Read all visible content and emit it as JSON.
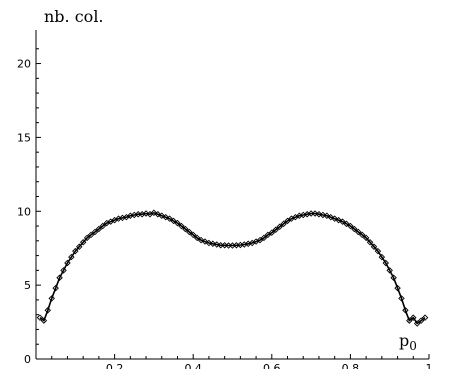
{
  "chart_data": {
    "type": "line",
    "title": "",
    "xlabel": "p0",
    "xlabel_base": "p",
    "xlabel_sub": "0",
    "ylabel": "nb. col.",
    "xlim": [
      0,
      1
    ],
    "ylim": [
      0,
      22
    ],
    "x_ticks": [
      0.2,
      0.4,
      0.6,
      0.8,
      1
    ],
    "x_tick_labels": [
      "0.2",
      "0.4",
      "0.6",
      "0.8",
      "1"
    ],
    "y_ticks": [
      0,
      5,
      10,
      15,
      20
    ],
    "y_tick_labels": [
      "0",
      "5",
      "10",
      "15",
      "20"
    ],
    "grid": false,
    "legend": "none",
    "series": [
      {
        "style": "line-with-diamond-markers",
        "x": [
          0.01,
          0.02,
          0.03,
          0.04,
          0.05,
          0.06,
          0.07,
          0.08,
          0.09,
          0.1,
          0.11,
          0.12,
          0.13,
          0.14,
          0.15,
          0.16,
          0.17,
          0.18,
          0.19,
          0.2,
          0.21,
          0.22,
          0.23,
          0.24,
          0.25,
          0.26,
          0.27,
          0.28,
          0.29,
          0.3,
          0.31,
          0.32,
          0.33,
          0.34,
          0.35,
          0.36,
          0.37,
          0.38,
          0.39,
          0.4,
          0.41,
          0.42,
          0.43,
          0.44,
          0.45,
          0.46,
          0.47,
          0.48,
          0.49,
          0.5,
          0.51,
          0.52,
          0.53,
          0.54,
          0.55,
          0.56,
          0.57,
          0.58,
          0.59,
          0.6,
          0.61,
          0.62,
          0.63,
          0.64,
          0.65,
          0.66,
          0.67,
          0.68,
          0.69,
          0.7,
          0.71,
          0.72,
          0.73,
          0.74,
          0.75,
          0.76,
          0.77,
          0.78,
          0.79,
          0.8,
          0.81,
          0.82,
          0.83,
          0.84,
          0.85,
          0.86,
          0.87,
          0.88,
          0.89,
          0.9,
          0.91,
          0.92,
          0.93,
          0.94,
          0.95,
          0.96,
          0.97,
          0.98,
          0.99
        ],
        "y": [
          2.8,
          2.6,
          3.3,
          4.1,
          4.8,
          5.5,
          6.0,
          6.5,
          6.9,
          7.3,
          7.6,
          7.9,
          8.2,
          8.4,
          8.6,
          8.8,
          9.0,
          9.2,
          9.3,
          9.4,
          9.5,
          9.55,
          9.6,
          9.7,
          9.75,
          9.8,
          9.8,
          9.85,
          9.8,
          9.9,
          9.8,
          9.7,
          9.6,
          9.5,
          9.35,
          9.2,
          9.0,
          8.8,
          8.6,
          8.4,
          8.2,
          8.05,
          7.95,
          7.85,
          7.8,
          7.75,
          7.7,
          7.7,
          7.68,
          7.68,
          7.7,
          7.72,
          7.75,
          7.8,
          7.85,
          7.95,
          8.05,
          8.2,
          8.4,
          8.55,
          8.75,
          8.95,
          9.15,
          9.35,
          9.5,
          9.6,
          9.7,
          9.75,
          9.8,
          9.85,
          9.85,
          9.8,
          9.75,
          9.7,
          9.6,
          9.5,
          9.4,
          9.3,
          9.15,
          9.0,
          8.8,
          8.6,
          8.4,
          8.2,
          7.9,
          7.6,
          7.3,
          6.9,
          6.5,
          6.0,
          5.5,
          4.8,
          4.1,
          3.3,
          2.6,
          2.8,
          2.4,
          2.6,
          2.8
        ]
      }
    ]
  }
}
